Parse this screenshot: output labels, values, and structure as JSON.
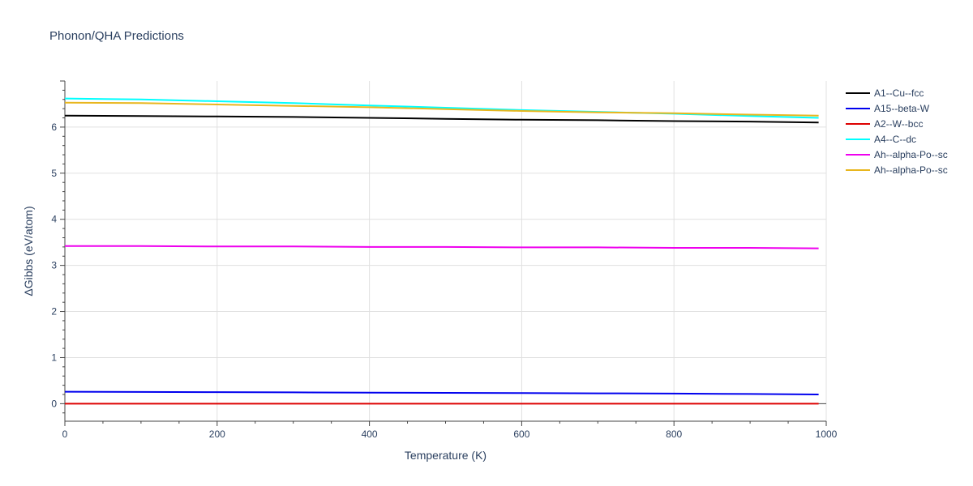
{
  "chart_data": {
    "type": "line",
    "title": "Phonon/QHA Predictions",
    "xlabel": "Temperature (K)",
    "ylabel": "ΔGibbs (eV/atom)",
    "xlim": [
      0,
      1000
    ],
    "ylim": [
      -0.38,
      7.0
    ],
    "x_ticks": [
      0,
      200,
      400,
      600,
      800,
      1000
    ],
    "x_tick_labels": [
      "0",
      "200",
      "400",
      "600",
      "800",
      "1000"
    ],
    "y_ticks": [
      0,
      1,
      2,
      3,
      4,
      5,
      6
    ],
    "y_tick_labels": [
      "0",
      "1",
      "2",
      "3",
      "4",
      "5",
      "6"
    ],
    "grid": true,
    "legend_position": "right",
    "series": [
      {
        "name": "A1--Cu--fcc",
        "color": "#000000",
        "x": [
          0,
          100,
          200,
          300,
          400,
          500,
          600,
          700,
          800,
          900,
          990
        ],
        "y": [
          6.25,
          6.24,
          6.23,
          6.22,
          6.2,
          6.18,
          6.16,
          6.15,
          6.13,
          6.12,
          6.1
        ]
      },
      {
        "name": "A15--beta-W",
        "color": "#0000ee",
        "x": [
          0,
          100,
          200,
          300,
          400,
          500,
          600,
          700,
          800,
          900,
          990
        ],
        "y": [
          0.26,
          0.255,
          0.25,
          0.245,
          0.24,
          0.235,
          0.23,
          0.225,
          0.22,
          0.21,
          0.2
        ]
      },
      {
        "name": "A2--W--bcc",
        "color": "#dd0000",
        "x": [
          0,
          100,
          200,
          300,
          400,
          500,
          600,
          700,
          800,
          900,
          990
        ],
        "y": [
          0,
          0,
          0,
          0,
          0,
          0,
          0,
          0,
          0,
          0,
          0
        ]
      },
      {
        "name": "A4--C--dc",
        "color": "#00ffff",
        "x": [
          0,
          100,
          200,
          300,
          400,
          500,
          600,
          700,
          800,
          900,
          990
        ],
        "y": [
          6.62,
          6.6,
          6.56,
          6.52,
          6.47,
          6.42,
          6.37,
          6.33,
          6.29,
          6.24,
          6.2
        ]
      },
      {
        "name": "Ah--alpha-Po--sc",
        "color": "#ee00ee",
        "x": [
          0,
          100,
          200,
          300,
          400,
          500,
          600,
          700,
          800,
          900,
          990
        ],
        "y": [
          3.42,
          3.42,
          3.41,
          3.41,
          3.4,
          3.4,
          3.39,
          3.39,
          3.38,
          3.38,
          3.37
        ]
      },
      {
        "name": "Ah--alpha-Po--sc",
        "color": "#e8b61e",
        "x": [
          0,
          100,
          200,
          300,
          400,
          500,
          600,
          700,
          800,
          900,
          990
        ],
        "y": [
          6.53,
          6.52,
          6.49,
          6.46,
          6.43,
          6.39,
          6.35,
          6.32,
          6.3,
          6.27,
          6.25
        ]
      }
    ]
  }
}
